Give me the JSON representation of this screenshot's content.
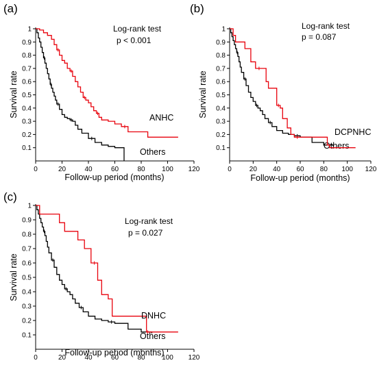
{
  "chart_data": [
    {
      "type": "line",
      "panel_label": "(a)",
      "title": "",
      "xlabel": "Follow-up period  (months)",
      "ylabel": "Survival rate",
      "xlim": [
        0,
        120
      ],
      "ylim": [
        0,
        1
      ],
      "x_ticks": [
        "0",
        "20",
        "40",
        "60",
        "80",
        "100",
        "120"
      ],
      "y_ticks": [
        "0.1",
        "0.2",
        "0.3",
        "0.4",
        "0.5",
        "0.6",
        "0.7",
        "0.8",
        "0.9",
        "1"
      ],
      "annotation": {
        "line1": "Log-rank test",
        "line2": "p < 0.001"
      },
      "series": [
        {
          "name": "ANHC",
          "color": "#e8000b",
          "x": [
            0,
            3,
            6,
            9,
            12,
            14,
            16,
            18,
            20,
            22,
            24,
            26,
            28,
            30,
            32,
            34,
            36,
            38,
            40,
            42,
            44,
            46,
            48,
            50,
            55,
            60,
            65,
            70,
            85,
            108
          ],
          "y": [
            1,
            0.99,
            0.97,
            0.95,
            0.92,
            0.88,
            0.84,
            0.8,
            0.76,
            0.74,
            0.7,
            0.68,
            0.64,
            0.6,
            0.56,
            0.52,
            0.48,
            0.46,
            0.44,
            0.41,
            0.38,
            0.36,
            0.33,
            0.31,
            0.3,
            0.28,
            0.26,
            0.22,
            0.18,
            0.18
          ]
        },
        {
          "name": "Others",
          "color": "#000000",
          "x": [
            0,
            1,
            2,
            3,
            4,
            5,
            6,
            7,
            8,
            9,
            10,
            11,
            12,
            13,
            14,
            15,
            16,
            18,
            20,
            22,
            24,
            26,
            28,
            30,
            32,
            35,
            40,
            45,
            50,
            55,
            60,
            67
          ],
          "y": [
            1,
            0.97,
            0.93,
            0.9,
            0.86,
            0.82,
            0.78,
            0.74,
            0.7,
            0.66,
            0.62,
            0.58,
            0.55,
            0.52,
            0.49,
            0.46,
            0.43,
            0.39,
            0.35,
            0.33,
            0.32,
            0.31,
            0.3,
            0.27,
            0.24,
            0.21,
            0.17,
            0.14,
            0.12,
            0.11,
            0.1,
            0
          ]
        }
      ]
    },
    {
      "type": "line",
      "panel_label": "(b)",
      "title": "",
      "xlabel": "Follow-up period  (months)",
      "ylabel": "Survival rate",
      "xlim": [
        0,
        120
      ],
      "ylim": [
        0,
        1
      ],
      "x_ticks": [
        "0",
        "20",
        "40",
        "60",
        "80",
        "100",
        "120"
      ],
      "y_ticks": [
        "0.1",
        "0.2",
        "0.3",
        "0.4",
        "0.5",
        "0.6",
        "0.7",
        "0.8",
        "0.9",
        "1"
      ],
      "annotation": {
        "line1": "Log-rank test",
        "line2": "p = 0.087"
      },
      "series": [
        {
          "name": "DCPNHC",
          "color": "#e8000b",
          "x": [
            0,
            3,
            5,
            10,
            13,
            18,
            22,
            28,
            31,
            33,
            37,
            40,
            43,
            45,
            49,
            52,
            55,
            60,
            83,
            85,
            90,
            107
          ],
          "y": [
            1,
            0.95,
            0.9,
            0.9,
            0.85,
            0.75,
            0.7,
            0.7,
            0.6,
            0.55,
            0.55,
            0.42,
            0.4,
            0.32,
            0.25,
            0.2,
            0.18,
            0.18,
            0.12,
            0.1,
            0.1,
            0.1
          ]
        },
        {
          "name": "Others",
          "color": "#000000",
          "x": [
            0,
            1,
            2,
            3,
            4,
            5,
            6,
            7,
            8,
            9,
            10,
            12,
            14,
            16,
            18,
            20,
            22,
            24,
            26,
            28,
            30,
            33,
            36,
            40,
            45,
            50,
            55,
            60,
            70,
            80,
            88
          ],
          "y": [
            1,
            0.97,
            0.94,
            0.91,
            0.88,
            0.85,
            0.82,
            0.79,
            0.75,
            0.71,
            0.67,
            0.62,
            0.57,
            0.52,
            0.48,
            0.45,
            0.42,
            0.4,
            0.38,
            0.35,
            0.32,
            0.29,
            0.26,
            0.23,
            0.21,
            0.2,
            0.19,
            0.18,
            0.14,
            0.12,
            0.11
          ]
        }
      ]
    },
    {
      "type": "line",
      "panel_label": "(c)",
      "title": "",
      "xlabel": "Follow-up period  (months)",
      "ylabel": "Survival rate",
      "xlim": [
        0,
        120
      ],
      "ylim": [
        0,
        1
      ],
      "x_ticks": [
        "0",
        "20",
        "40",
        "60",
        "80",
        "100",
        "120"
      ],
      "y_ticks": [
        "0.1",
        "0.2",
        "0.3",
        "0.4",
        "0.5",
        "0.6",
        "0.7",
        "0.8",
        "0.9",
        "1"
      ],
      "annotation": {
        "line1": "Log-rank test",
        "line2": "p = 0.027"
      },
      "series": [
        {
          "name": "DNHC",
          "color": "#e8000b",
          "x": [
            0,
            3,
            18,
            22,
            32,
            37,
            42,
            47,
            50,
            55,
            58,
            84,
            86,
            108
          ],
          "y": [
            1,
            0.94,
            0.88,
            0.82,
            0.76,
            0.7,
            0.6,
            0.48,
            0.38,
            0.35,
            0.23,
            0.12,
            0.12,
            0.12
          ]
        },
        {
          "name": "Others",
          "color": "#000000",
          "x": [
            0,
            1,
            2,
            3,
            4,
            5,
            6,
            7,
            8,
            9,
            10,
            12,
            14,
            16,
            18,
            20,
            22,
            24,
            26,
            28,
            30,
            33,
            36,
            40,
            45,
            50,
            55,
            60,
            70,
            80,
            88
          ],
          "y": [
            1,
            0.97,
            0.94,
            0.91,
            0.88,
            0.85,
            0.82,
            0.79,
            0.75,
            0.71,
            0.67,
            0.62,
            0.57,
            0.52,
            0.48,
            0.45,
            0.42,
            0.4,
            0.38,
            0.35,
            0.32,
            0.29,
            0.26,
            0.23,
            0.21,
            0.2,
            0.19,
            0.18,
            0.14,
            0.12,
            0.11
          ]
        }
      ]
    }
  ]
}
